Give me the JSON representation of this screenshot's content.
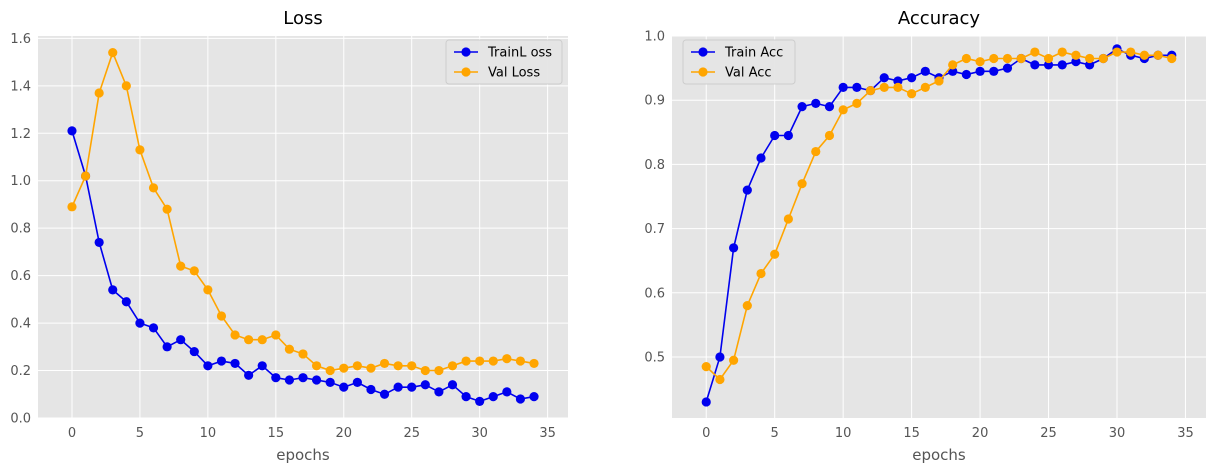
{
  "chart_data": [
    {
      "type": "line",
      "title": "Loss",
      "xlabel": "epochs",
      "ylabel": "",
      "xlim": [
        -2.5,
        36.5
      ],
      "ylim": [
        0.0,
        1.61
      ],
      "xticks": [
        0,
        5,
        10,
        15,
        20,
        25,
        30,
        35
      ],
      "yticks": [
        0.0,
        0.2,
        0.4,
        0.6,
        0.8,
        1.0,
        1.2,
        1.4,
        1.6
      ],
      "ytick_decimals": 1,
      "grid": true,
      "legend_position": "upper-right",
      "series": [
        {
          "name": "TrainL oss",
          "color": "#0000ee",
          "x": [
            0,
            1,
            2,
            3,
            4,
            5,
            6,
            7,
            8,
            9,
            10,
            11,
            12,
            13,
            14,
            15,
            16,
            17,
            18,
            19,
            20,
            21,
            22,
            23,
            24,
            25,
            26,
            27,
            28,
            29,
            30,
            31,
            32,
            33,
            34
          ],
          "values": [
            1.21,
            1.02,
            0.74,
            0.54,
            0.49,
            0.4,
            0.38,
            0.3,
            0.33,
            0.28,
            0.22,
            0.24,
            0.23,
            0.18,
            0.22,
            0.17,
            0.16,
            0.17,
            0.16,
            0.15,
            0.13,
            0.15,
            0.12,
            0.1,
            0.13,
            0.13,
            0.14,
            0.11,
            0.14,
            0.09,
            0.07,
            0.09,
            0.11,
            0.08,
            0.09
          ]
        },
        {
          "name": "Val Loss",
          "color": "#ffa500",
          "x": [
            0,
            1,
            2,
            3,
            4,
            5,
            6,
            7,
            8,
            9,
            10,
            11,
            12,
            13,
            14,
            15,
            16,
            17,
            18,
            19,
            20,
            21,
            22,
            23,
            24,
            25,
            26,
            27,
            28,
            29,
            30,
            31,
            32,
            33,
            34
          ],
          "values": [
            0.89,
            1.02,
            1.37,
            1.54,
            1.4,
            1.13,
            0.97,
            0.88,
            0.64,
            0.62,
            0.54,
            0.43,
            0.35,
            0.33,
            0.33,
            0.35,
            0.29,
            0.27,
            0.22,
            0.2,
            0.21,
            0.22,
            0.21,
            0.23,
            0.22,
            0.22,
            0.2,
            0.2,
            0.22,
            0.24,
            0.24,
            0.24,
            0.25,
            0.24,
            0.23
          ]
        }
      ]
    },
    {
      "type": "line",
      "title": "Accuracy",
      "xlabel": "epochs",
      "ylabel": "",
      "xlim": [
        -2.5,
        36.5
      ],
      "ylim": [
        0.405,
        1.0
      ],
      "xticks": [
        0,
        5,
        10,
        15,
        20,
        25,
        30,
        35
      ],
      "yticks": [
        0.5,
        0.6,
        0.7,
        0.8,
        0.9,
        1.0
      ],
      "ytick_decimals": 1,
      "grid": true,
      "legend_position": "upper-left",
      "series": [
        {
          "name": "Train Acc",
          "color": "#0000ee",
          "x": [
            0,
            1,
            2,
            3,
            4,
            5,
            6,
            7,
            8,
            9,
            10,
            11,
            12,
            13,
            14,
            15,
            16,
            17,
            18,
            19,
            20,
            21,
            22,
            23,
            24,
            25,
            26,
            27,
            28,
            29,
            30,
            31,
            32,
            33,
            34
          ],
          "values": [
            0.43,
            0.5,
            0.67,
            0.76,
            0.81,
            0.845,
            0.845,
            0.89,
            0.895,
            0.89,
            0.92,
            0.92,
            0.915,
            0.935,
            0.93,
            0.935,
            0.945,
            0.935,
            0.945,
            0.94,
            0.945,
            0.945,
            0.95,
            0.965,
            0.955,
            0.955,
            0.955,
            0.96,
            0.955,
            0.965,
            0.98,
            0.97,
            0.965,
            0.97,
            0.97
          ]
        },
        {
          "name": "Val Acc",
          "color": "#ffa500",
          "x": [
            0,
            1,
            2,
            3,
            4,
            5,
            6,
            7,
            8,
            9,
            10,
            11,
            12,
            13,
            14,
            15,
            16,
            17,
            18,
            19,
            20,
            21,
            22,
            23,
            24,
            25,
            26,
            27,
            28,
            29,
            30,
            31,
            32,
            33,
            34
          ],
          "values": [
            0.485,
            0.465,
            0.495,
            0.58,
            0.63,
            0.66,
            0.715,
            0.77,
            0.82,
            0.845,
            0.885,
            0.895,
            0.915,
            0.92,
            0.92,
            0.91,
            0.92,
            0.93,
            0.955,
            0.965,
            0.96,
            0.965,
            0.965,
            0.965,
            0.975,
            0.965,
            0.975,
            0.97,
            0.965,
            0.965,
            0.975,
            0.975,
            0.97,
            0.97,
            0.965
          ]
        }
      ]
    }
  ]
}
